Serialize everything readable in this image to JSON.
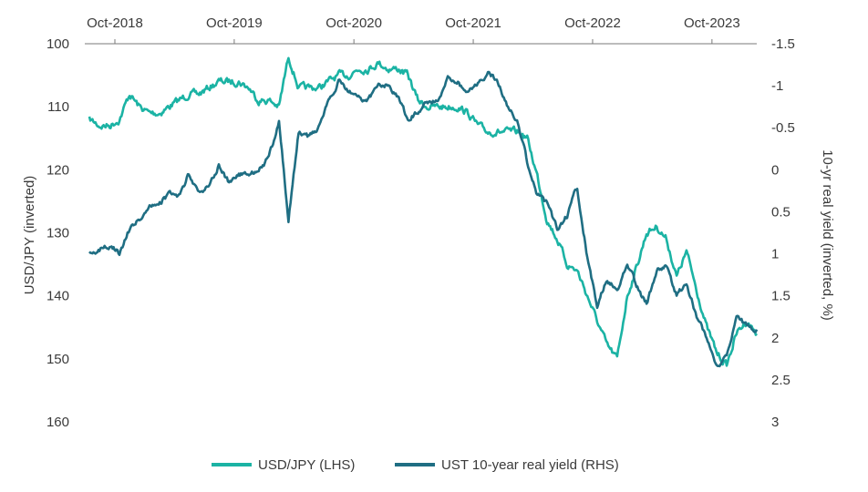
{
  "chart_data": {
    "type": "line",
    "x_axis": {
      "position": "top",
      "tick_labels": [
        "Oct-2018",
        "Oct-2019",
        "Oct-2020",
        "Oct-2021",
        "Oct-2022",
        "Oct-2023"
      ]
    },
    "y_left": {
      "label": "USD/JPY (inverted)",
      "inverted": true,
      "range": [
        100,
        160
      ],
      "ticks": [
        "100",
        "110",
        "120",
        "130",
        "140",
        "150",
        "160"
      ]
    },
    "y_right": {
      "label": "10-yr real yield (inverted, %)",
      "inverted": true,
      "range": [
        -1.5,
        3
      ],
      "ticks": [
        "-1.5",
        "-1",
        "-0.5",
        "0",
        "0.5",
        "1",
        "1.5",
        "2",
        "2.5",
        "3"
      ]
    },
    "grid": false,
    "legend_position": "bottom",
    "series": [
      {
        "name": "USD/JPY (LHS)",
        "axis": "left",
        "color": "#1bb3a4",
        "x": [
          "2018-07",
          "2018-08",
          "2018-09",
          "2018-10",
          "2018-11",
          "2018-12",
          "2019-01",
          "2019-02",
          "2019-03",
          "2019-04",
          "2019-05",
          "2019-06",
          "2019-07",
          "2019-08",
          "2019-09",
          "2019-10",
          "2019-11",
          "2019-12",
          "2020-01",
          "2020-02",
          "2020-03",
          "2020-04",
          "2020-05",
          "2020-06",
          "2020-07",
          "2020-08",
          "2020-09",
          "2020-10",
          "2020-11",
          "2020-12",
          "2021-01",
          "2021-02",
          "2021-03",
          "2021-04",
          "2021-05",
          "2021-06",
          "2021-07",
          "2021-08",
          "2021-09",
          "2021-10",
          "2021-11",
          "2021-12",
          "2022-01",
          "2022-02",
          "2022-03",
          "2022-04",
          "2022-05",
          "2022-06",
          "2022-07",
          "2022-08",
          "2022-09",
          "2022-10",
          "2022-11",
          "2022-12",
          "2023-01",
          "2023-02",
          "2023-03",
          "2023-04",
          "2023-05",
          "2023-06",
          "2023-07",
          "2023-08",
          "2023-09",
          "2023-10",
          "2023-11",
          "2023-12",
          "2024-01",
          "2024-02"
        ],
        "values": [
          112,
          113,
          113,
          112,
          108,
          110,
          111,
          111,
          110,
          109,
          108,
          108,
          107,
          106,
          106,
          106,
          107,
          109,
          109,
          110,
          102,
          107,
          107,
          107,
          106,
          105,
          105,
          104,
          104,
          103,
          104,
          104,
          105,
          109,
          110,
          110,
          110,
          110,
          111,
          113,
          114,
          114,
          114,
          114,
          115,
          121,
          128,
          131,
          135,
          136,
          140,
          144,
          148,
          150,
          140,
          135,
          130,
          129,
          131,
          137,
          133,
          139,
          145,
          149,
          151,
          146,
          144,
          146
        ]
      },
      {
        "name": "UST 10-year real yield (RHS)",
        "axis": "right",
        "color": "#1f6e83",
        "x": [
          "2018-07",
          "2018-08",
          "2018-09",
          "2018-10",
          "2018-11",
          "2018-12",
          "2019-01",
          "2019-02",
          "2019-03",
          "2019-04",
          "2019-05",
          "2019-06",
          "2019-07",
          "2019-08",
          "2019-09",
          "2019-10",
          "2019-11",
          "2019-12",
          "2020-01",
          "2020-02",
          "2020-03",
          "2020-04",
          "2020-05",
          "2020-06",
          "2020-07",
          "2020-08",
          "2020-09",
          "2020-10",
          "2020-11",
          "2020-12",
          "2021-01",
          "2021-02",
          "2021-03",
          "2021-04",
          "2021-05",
          "2021-06",
          "2021-07",
          "2021-08",
          "2021-09",
          "2021-10",
          "2021-11",
          "2021-12",
          "2022-01",
          "2022-02",
          "2022-03",
          "2022-04",
          "2022-05",
          "2022-06",
          "2022-07",
          "2022-08",
          "2022-09",
          "2022-10",
          "2022-11",
          "2022-12",
          "2023-01",
          "2023-02",
          "2023-03",
          "2023-04",
          "2023-05",
          "2023-06",
          "2023-07",
          "2023-08",
          "2023-09",
          "2023-10",
          "2023-11",
          "2023-12",
          "2024-01",
          "2024-02"
        ],
        "values": [
          1.0,
          0.95,
          0.9,
          1.0,
          0.7,
          0.6,
          0.45,
          0.4,
          0.3,
          0.3,
          0.05,
          0.25,
          0.2,
          -0.05,
          0.15,
          0.05,
          0.05,
          0.0,
          -0.15,
          -0.55,
          0.6,
          -0.45,
          -0.4,
          -0.5,
          -0.85,
          -1.05,
          -0.95,
          -0.85,
          -0.85,
          -1.0,
          -1.0,
          -0.85,
          -0.6,
          -0.7,
          -0.8,
          -0.85,
          -1.1,
          -1.05,
          -0.9,
          -1.05,
          -1.15,
          -1.05,
          -0.75,
          -0.55,
          -0.1,
          0.3,
          0.4,
          0.7,
          0.55,
          0.2,
          1.05,
          1.6,
          1.3,
          1.45,
          1.1,
          1.4,
          1.6,
          1.2,
          1.15,
          1.5,
          1.35,
          1.75,
          2.0,
          2.35,
          2.2,
          1.75,
          1.85,
          1.9
        ]
      }
    ]
  }
}
